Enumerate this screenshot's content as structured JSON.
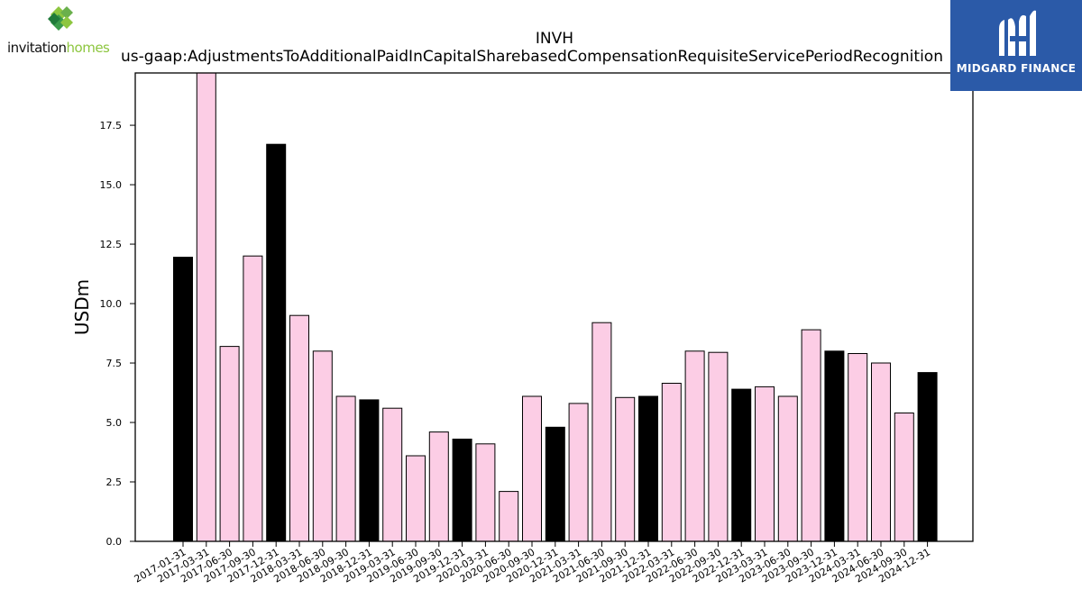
{
  "logos": {
    "left": {
      "word1": "invitation",
      "word2": "homes"
    },
    "right": {
      "text": "MIDGARD FINANCE"
    }
  },
  "colors": {
    "highlight": "#000000",
    "regular": "#fccde5",
    "edge": "#000000"
  },
  "chart_data": {
    "type": "bar",
    "title": "INVH",
    "subtitle": "us-gaap:AdjustmentsToAdditionalPaidInCapitalSharebasedCompensationRequisiteServicePeriodRecognition",
    "xlabel": "",
    "ylabel": "USDm",
    "ylim": [
      0,
      19.7
    ],
    "yticks": [
      0.0,
      2.5,
      5.0,
      7.5,
      10.0,
      12.5,
      15.0,
      17.5
    ],
    "ytick_labels": [
      "0.0",
      "2.5",
      "5.0",
      "7.5",
      "10.0",
      "12.5",
      "15.0",
      "17.5"
    ],
    "grid": false,
    "categories": [
      "2017-01-31",
      "2017-03-31",
      "2017-06-30",
      "2017-09-30",
      "2017-12-31",
      "2018-03-31",
      "2018-06-30",
      "2018-09-30",
      "2018-12-31",
      "2019-03-31",
      "2019-06-30",
      "2019-09-30",
      "2019-12-31",
      "2020-03-31",
      "2020-06-30",
      "2020-09-30",
      "2020-12-31",
      "2021-03-31",
      "2021-06-30",
      "2021-09-30",
      "2021-12-31",
      "2022-03-31",
      "2022-06-30",
      "2022-09-30",
      "2022-12-31",
      "2023-03-31",
      "2023-06-30",
      "2023-09-30",
      "2023-12-31",
      "2024-03-31",
      "2024-06-30",
      "2024-09-30",
      "2024-12-31"
    ],
    "values": [
      11.95,
      19.7,
      8.2,
      12.0,
      16.7,
      9.5,
      8.0,
      6.1,
      5.95,
      5.6,
      3.6,
      4.6,
      4.3,
      4.1,
      2.1,
      6.1,
      4.8,
      5.8,
      9.2,
      6.05,
      6.1,
      6.65,
      8.0,
      7.95,
      6.4,
      6.5,
      6.1,
      8.9,
      8.0,
      7.9,
      7.5,
      5.4,
      7.1
    ],
    "highlight": [
      true,
      false,
      false,
      false,
      true,
      false,
      false,
      false,
      true,
      false,
      false,
      false,
      true,
      false,
      false,
      false,
      true,
      false,
      false,
      false,
      true,
      false,
      false,
      false,
      true,
      false,
      false,
      false,
      true,
      false,
      false,
      false,
      true
    ]
  }
}
